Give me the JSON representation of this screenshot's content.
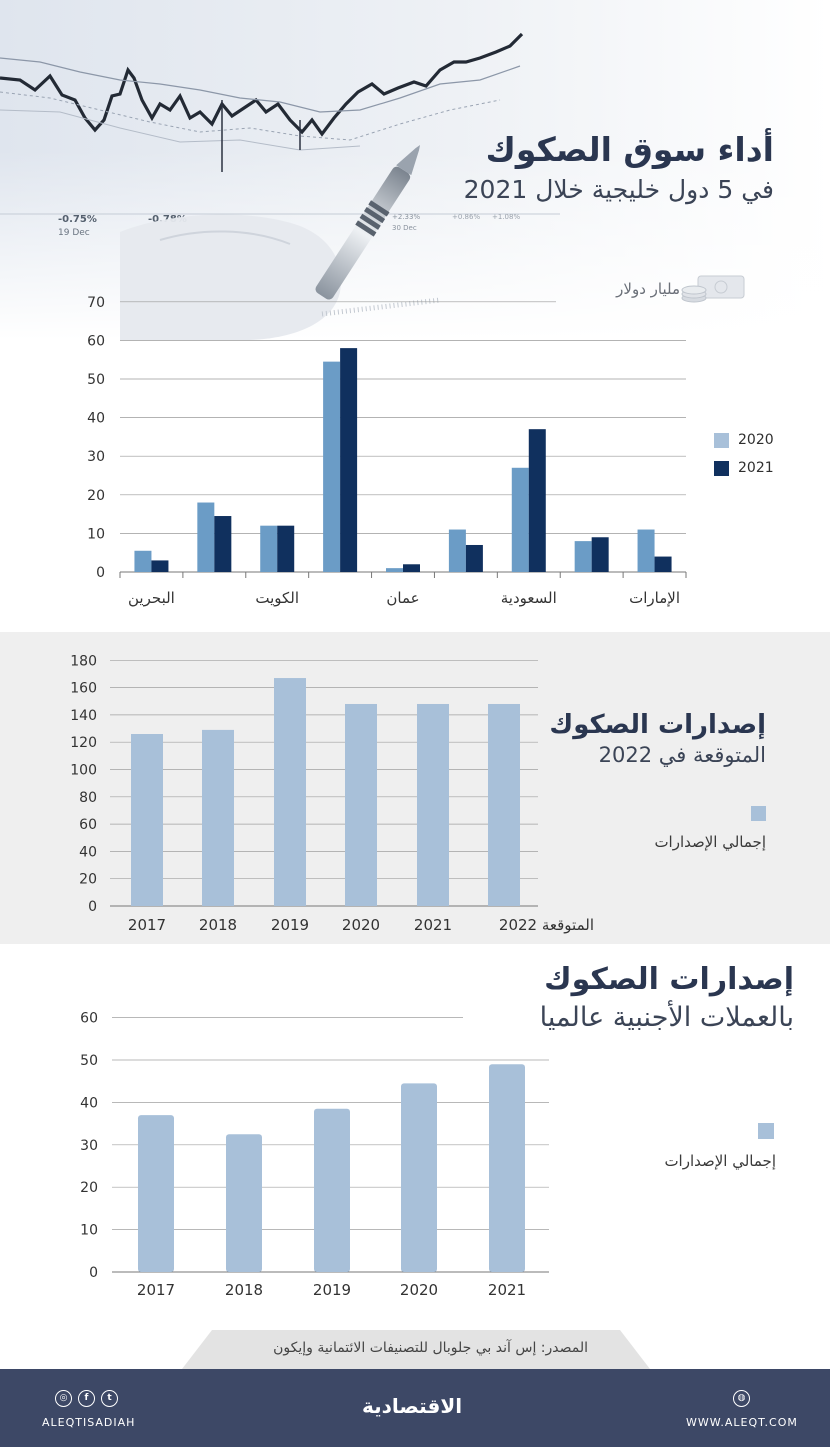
{
  "header": {
    "title": "أداء سوق الصكوك",
    "subtitle": "في 5 دول خليجية خلال 2021",
    "photo_readouts": [
      "-0.75%",
      "19 Dec",
      "-0.78%",
      "+2.33%",
      "30 Dec",
      "+0.86%",
      "+1.08%"
    ]
  },
  "unit_label": "مليار دولار",
  "section2": {
    "title": "إصدارات الصكوك",
    "subtitle": "المتوقعة في 2022",
    "legend": "إجمالي الإصدارات"
  },
  "section3": {
    "title": "إصدارات الصكوك",
    "subtitle": "بالعملات الأجنبية عالميا",
    "legend": "إجمالي الإصدارات"
  },
  "source": "المصدر: إس آند بي جلوبال للتصنيفات الائتمانية وإيكون",
  "footer": {
    "social": "ALEQTISADIAH",
    "logo": "الاقتصادية",
    "website": "WWW.ALEQT.COM"
  },
  "colors": {
    "light_bar": "#a8c0d9",
    "mid_bar": "#6b9cc6",
    "dark_bar": "#10305e",
    "title": "#2a3650",
    "footer_bg": "#3d4866",
    "band_bg": "#efefef"
  },
  "chart_data": [
    {
      "type": "bar",
      "title": "أداء سوق الصكوك في 5 دول خليجية خلال 2021",
      "ylabel": "مليار دولار",
      "ylim": [
        0,
        70
      ],
      "yticks": [
        0,
        10,
        20,
        30,
        40,
        50,
        60,
        70
      ],
      "legend_position": "right",
      "categories": [
        "البحرين",
        "",
        "الكويت",
        "",
        "عمان",
        "",
        "السعودية",
        "",
        "الإمارات"
      ],
      "series": [
        {
          "name": "2020",
          "values": [
            5.5,
            18,
            12,
            54.5,
            1,
            11,
            27,
            8,
            11
          ]
        },
        {
          "name": "2021",
          "values": [
            3,
            14.5,
            12,
            58,
            2,
            7,
            37,
            9,
            4
          ]
        }
      ]
    },
    {
      "type": "bar",
      "title": "إصدارات الصكوك المتوقعة في 2022",
      "ylim": [
        0,
        180
      ],
      "yticks": [
        0,
        20,
        40,
        60,
        80,
        100,
        120,
        140,
        160,
        180
      ],
      "legend_position": "right",
      "categories": [
        "2017",
        "2018",
        "2019",
        "2020",
        "2021",
        "2022 المتوقعة"
      ],
      "series": [
        {
          "name": "إجمالي الإصدارات",
          "values": [
            126,
            129,
            167,
            148,
            148,
            148
          ]
        }
      ]
    },
    {
      "type": "bar",
      "title": "إصدارات الصكوك بالعملات الأجنبية عالميا",
      "ylim": [
        0,
        60
      ],
      "yticks": [
        0,
        10,
        20,
        30,
        40,
        50,
        60
      ],
      "legend_position": "right",
      "categories": [
        "2017",
        "2018",
        "2019",
        "2020",
        "2021"
      ],
      "series": [
        {
          "name": "إجمالي الإصدارات",
          "values": [
            37,
            32.5,
            38.5,
            44.5,
            49
          ]
        }
      ]
    }
  ]
}
